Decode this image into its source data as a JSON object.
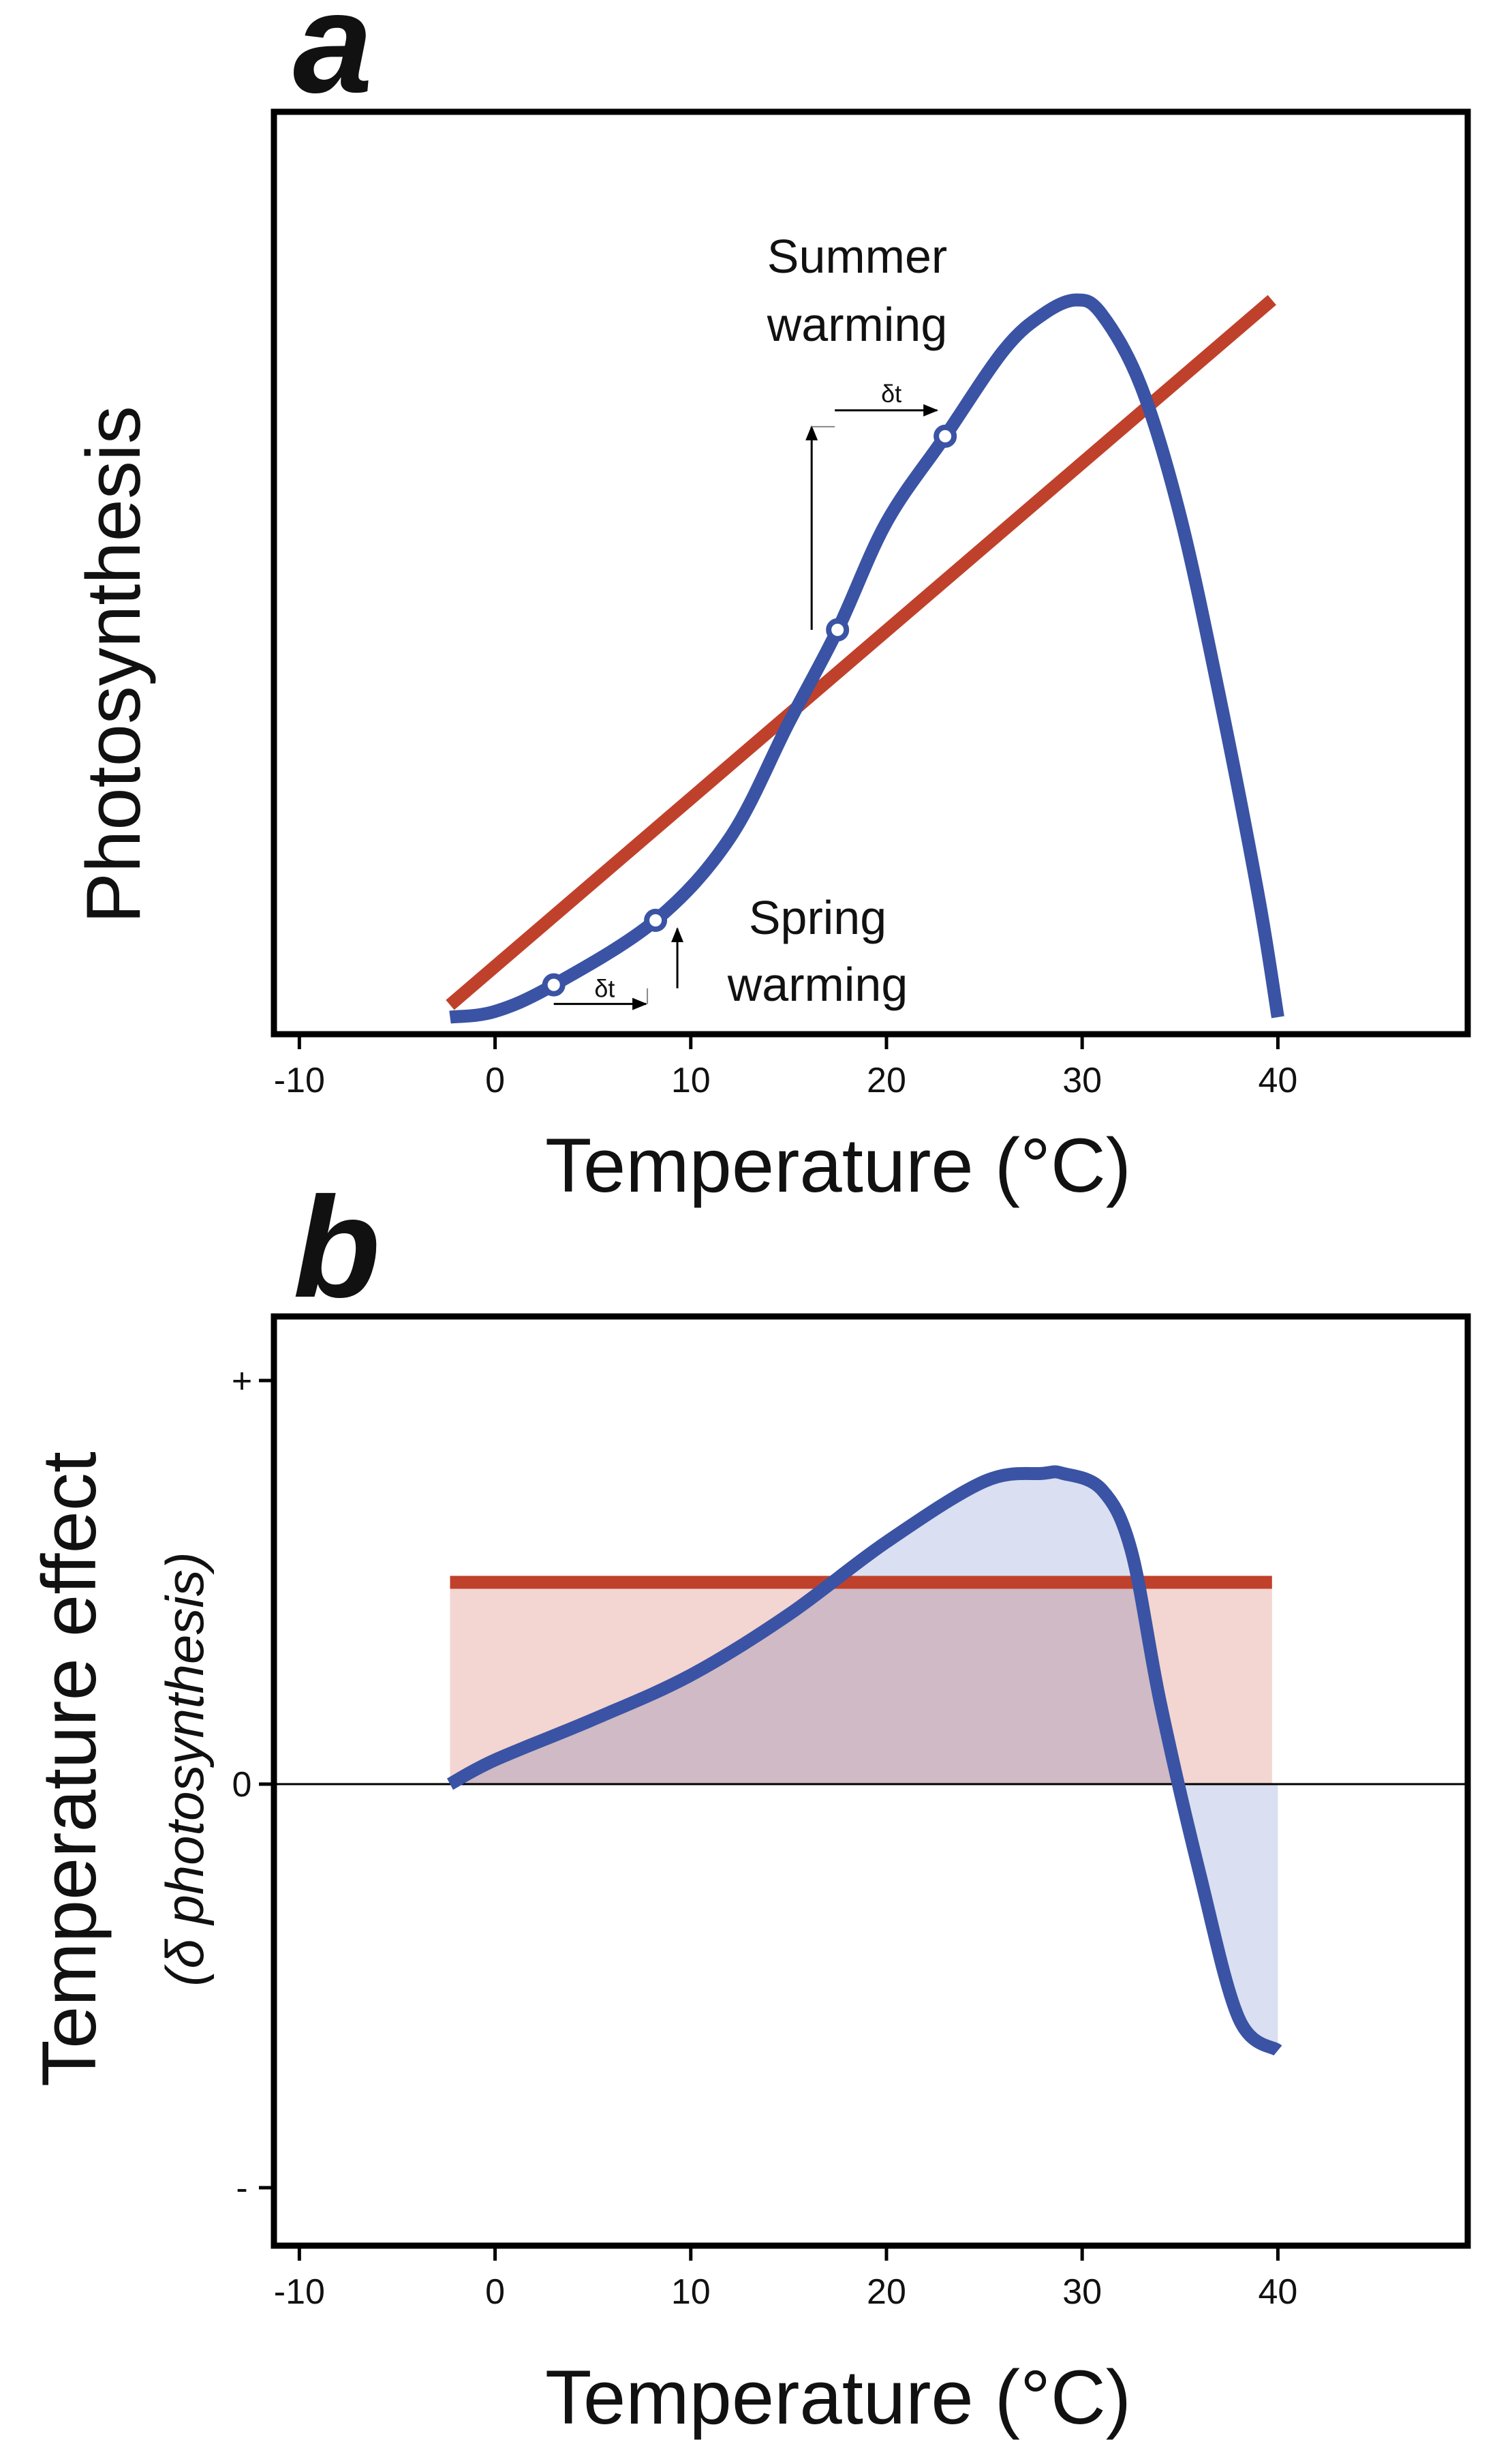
{
  "chart_data": [
    {
      "panel_label": "a",
      "type": "line",
      "xlabel": "Temperature (°C)",
      "ylabel": "Photosynthesis",
      "xlim": [
        -11.3,
        49.7
      ],
      "ylim": [
        0,
        100
      ],
      "xticks": [
        -10,
        0,
        10,
        20,
        30,
        40
      ],
      "xtick_labels": [
        "-10",
        "0",
        "10",
        "20",
        "30",
        "40"
      ],
      "grid": false,
      "series": [
        {
          "color": "#c0412b",
          "x": [
            -2.3,
            39.7
          ],
          "y": [
            1.7,
            100
          ]
        },
        {
          "color": "#3a53a4",
          "x": [
            -2.3,
            0,
            3,
            8.2,
            12,
            15,
            17.5,
            20,
            23,
            26,
            28,
            29.7,
            31,
            33,
            35,
            37,
            39,
            40
          ],
          "y": [
            0,
            0.8,
            4.5,
            13.5,
            25,
            41,
            54,
            69,
            81,
            93,
            98,
            100,
            98,
            88,
            70,
            45,
            17,
            0
          ]
        }
      ],
      "points": [
        {
          "x": 3,
          "y": 4.5
        },
        {
          "x": 8.2,
          "y": 13.5
        },
        {
          "x": 17.5,
          "y": 54
        },
        {
          "x": 23,
          "y": 81
        }
      ],
      "annotations": [
        {
          "text": "Summer\nwarming",
          "lines": [
            "Summer",
            "warming"
          ]
        },
        {
          "text": "Spring\nwarming",
          "lines": [
            "Spring",
            "warming"
          ]
        },
        {
          "text": "δt"
        },
        {
          "text": "δt"
        }
      ]
    },
    {
      "panel_label": "b",
      "type": "area",
      "xlabel": "Temperature (°C)",
      "ylabel": "Temperature effect",
      "ylabel_sub": "(δ photosynthesis)",
      "xlim": [
        -11.3,
        49.7
      ],
      "ylim": [
        -1.1,
        1.0
      ],
      "xticks": [
        -10,
        0,
        10,
        20,
        30,
        40
      ],
      "xtick_labels": [
        "-10",
        "0",
        "10",
        "20",
        "30",
        "40"
      ],
      "yticks": [
        -1,
        0,
        1
      ],
      "ytick_labels": [
        "-",
        "0",
        "+"
      ],
      "grid": false,
      "series": [
        {
          "color": "#c0412b",
          "fill": "#f2d3cf",
          "x": [
            -2.3,
            39.7
          ],
          "y": [
            0.5,
            0.5
          ]
        },
        {
          "color": "#3a53a4",
          "fill": "#cdd4ec",
          "x": [
            -2.3,
            0,
            5,
            10,
            15,
            20,
            25,
            28,
            29,
            31,
            32.5,
            34,
            36,
            38,
            40
          ],
          "y": [
            0,
            0.06,
            0.16,
            0.27,
            0.42,
            0.6,
            0.75,
            0.77,
            0.77,
            0.73,
            0.58,
            0.2,
            -0.22,
            -0.58,
            -0.66
          ]
        }
      ]
    }
  ]
}
